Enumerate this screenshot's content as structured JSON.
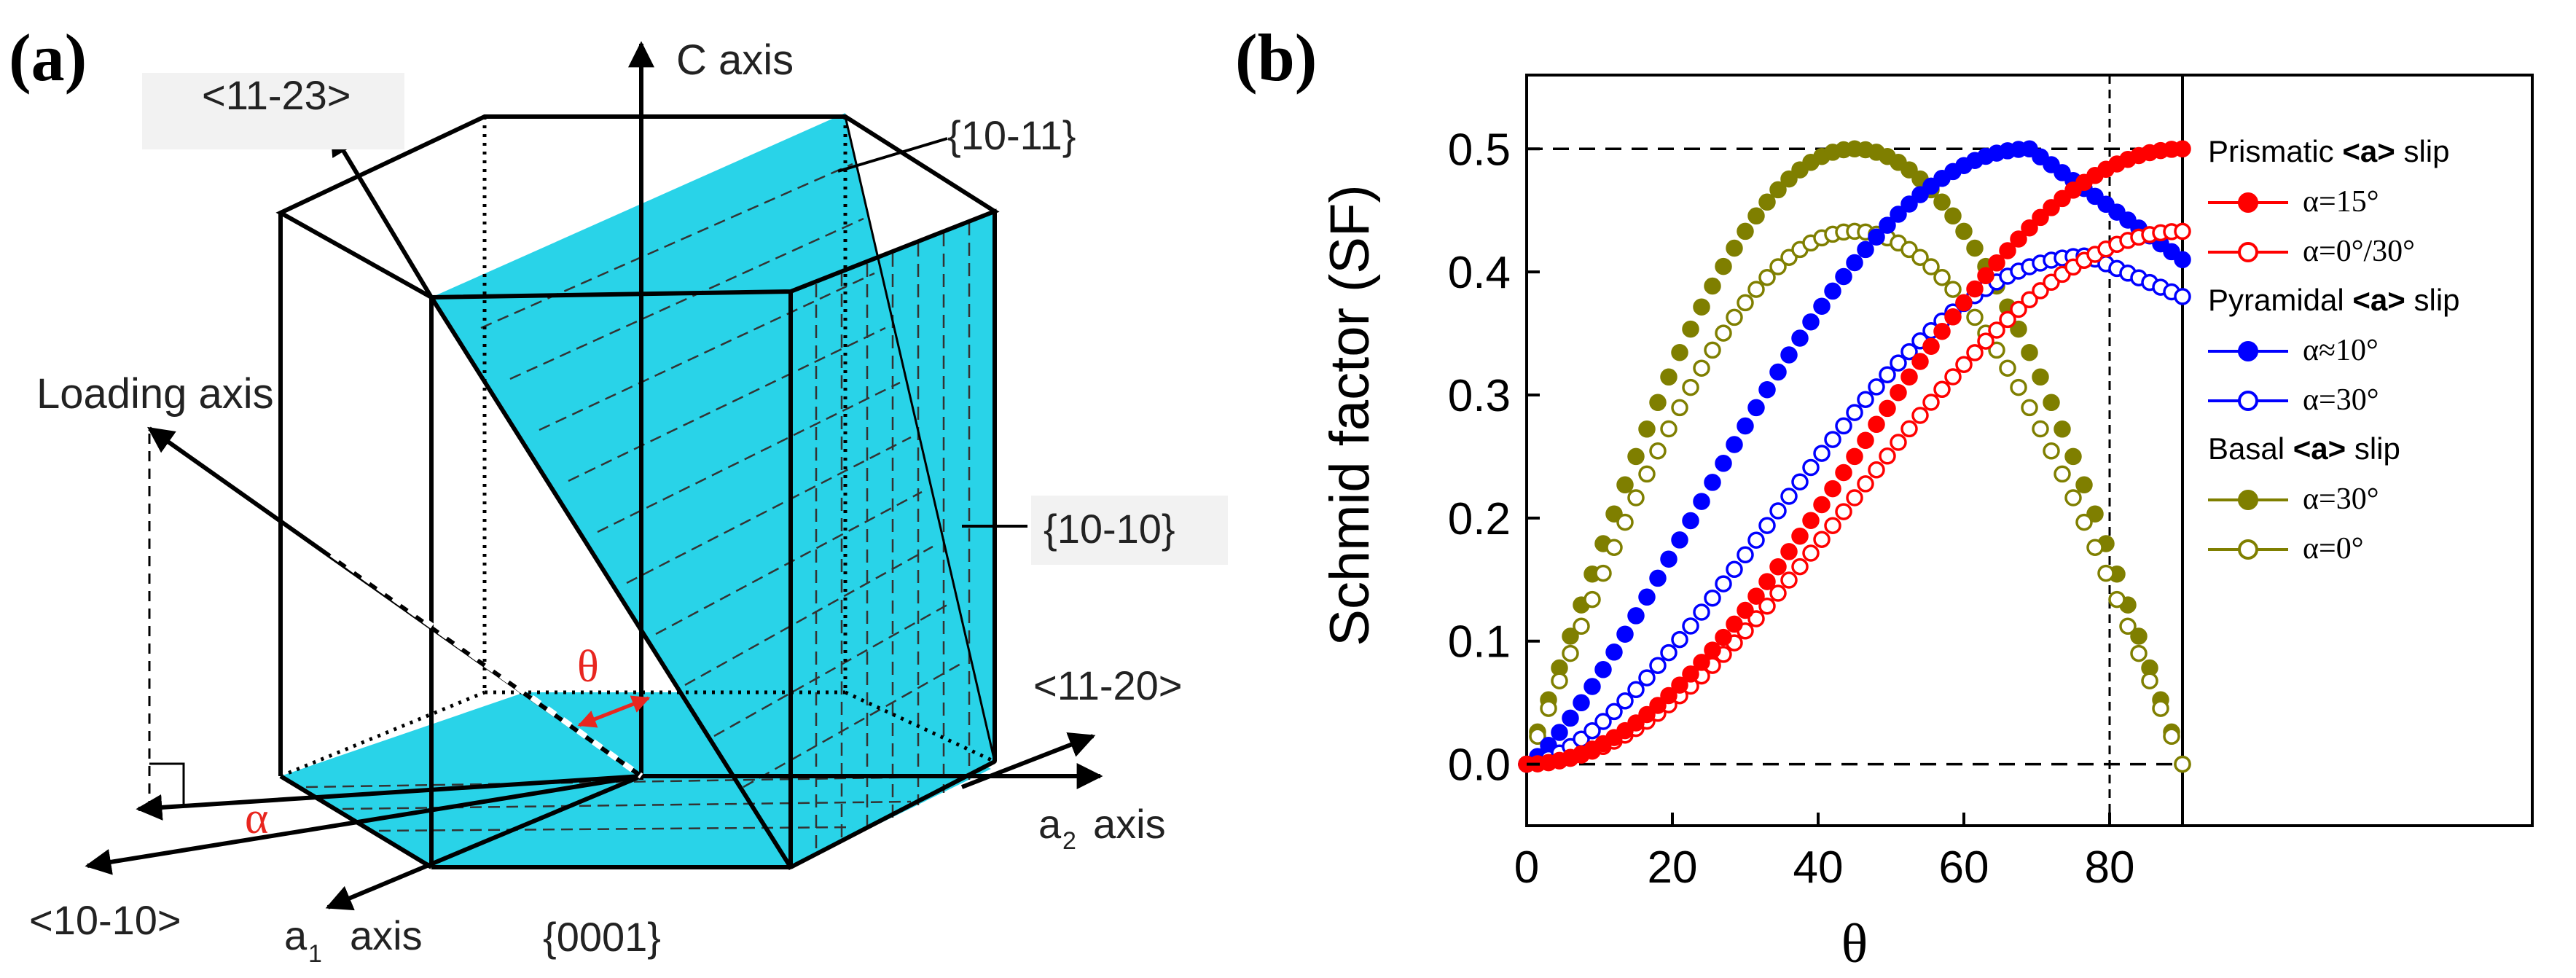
{
  "panel_a": {
    "label": "(a)",
    "labels": {
      "c_axis": "C axis",
      "dir_11_23": "<11-23>",
      "plane_10_11": "{10-11}",
      "loading_axis": "Loading axis",
      "plane_10_10": "{10-10}",
      "theta": "θ",
      "dir_11_20": "<11-20>",
      "alpha": "α",
      "a2_main": "a",
      "a2_sub": "2",
      "a2_axis": "axis",
      "dir_10_10": "<10-10>",
      "a1_main": "a",
      "a1_sub": "1",
      "a1_axis": "axis",
      "plane_0001": "{0001}"
    },
    "colors": {
      "plane_fill": "#29d3e8",
      "theta_arrow": "#e8261f",
      "alpha_text": "#e8261f",
      "text": "#222222"
    }
  },
  "panel_b": {
    "label": "(b)"
  },
  "chart_data": {
    "type": "scatter",
    "xlabel": "θ",
    "ylabel": "Schmid factor (SF)",
    "xlim": [
      0,
      90
    ],
    "ylim": [
      -0.05,
      0.56
    ],
    "xticks": [
      "0",
      "20",
      "40",
      "60",
      "80"
    ],
    "yticks": [
      "0.0",
      "0.1",
      "0.2",
      "0.3",
      "0.4",
      "0.5"
    ],
    "reference_lines": {
      "y_dashed": [
        0.5,
        0.0
      ],
      "x_dashed": [
        80
      ]
    },
    "legend": {
      "placement": "right",
      "groups": [
        {
          "title_pre": "Prismatic ",
          "title_bold": "<a>",
          "title_post": " slip",
          "entries": [
            0,
            1
          ]
        },
        {
          "title_pre": "Pyramidal ",
          "title_bold": "<a>",
          "title_post": " slip",
          "entries": [
            2,
            3
          ]
        },
        {
          "title_pre": "Basal ",
          "title_bold": "<a>",
          "title_post": " slip",
          "entries": [
            4,
            5
          ]
        }
      ]
    },
    "series": [
      {
        "name": "α=15°",
        "color": "#ff0000",
        "filled": true,
        "x_step": 1.5,
        "formula": "prismatic_a15",
        "peak": {
          "x": 90,
          "y": 0.5
        }
      },
      {
        "name": "α=0°/30°",
        "color": "#ff0000",
        "filled": false,
        "x_step": 1.5,
        "formula": "prismatic_a0",
        "peak": {
          "x": 90,
          "y": 0.433
        }
      },
      {
        "name": "α≈10°",
        "color": "#0000ff",
        "filled": true,
        "x_step": 1.5,
        "formula": "pyramidal_a10",
        "peak": {
          "x": 69,
          "y": 0.5
        },
        "end": {
          "x": 90,
          "y": 0.41
        }
      },
      {
        "name": "α=30°",
        "color": "#0000ff",
        "filled": false,
        "x_step": 1.5,
        "formula": "pyramidal_a30",
        "peak": {
          "x": 77,
          "y": 0.413
        },
        "end": {
          "x": 90,
          "y": 0.38
        }
      },
      {
        "name": "α=30°",
        "color": "#7f7f00",
        "filled": true,
        "x_step": 1.5,
        "formula": "basal_a30",
        "peak": {
          "x": 45,
          "y": 0.5
        },
        "end": {
          "x": 90,
          "y": 0.0
        }
      },
      {
        "name": "α=0°",
        "color": "#7f7f00",
        "filled": false,
        "x_step": 1.5,
        "formula": "basal_a0",
        "peak": {
          "x": 45,
          "y": 0.433
        },
        "end": {
          "x": 90,
          "y": 0.0
        }
      }
    ]
  }
}
